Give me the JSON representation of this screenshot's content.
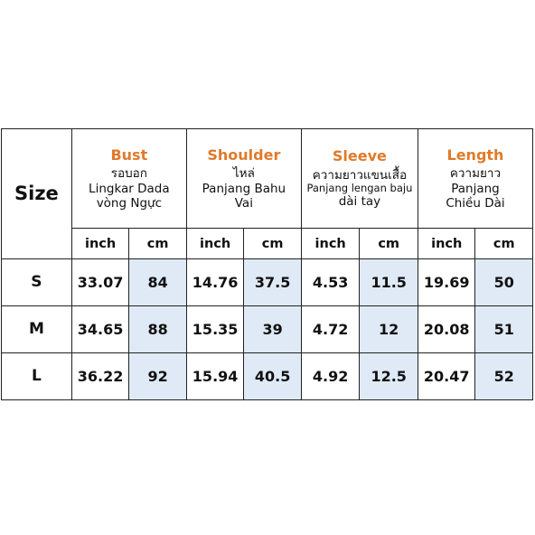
{
  "table": {
    "size_header": "Size",
    "colors": {
      "group_title": "#e07a2a",
      "cm_fill": "#dfeaf6",
      "border": "#222222"
    },
    "groups": [
      {
        "en": "Bust",
        "lines": [
          "รอบอก",
          "Lingkar Dada",
          "vòng Ngực"
        ]
      },
      {
        "en": "Shoulder",
        "lines": [
          "ไหล่",
          "Panjang Bahu",
          "Vai"
        ]
      },
      {
        "en": "Sleeve",
        "lines": [
          "ความยาวแขนเสื้อ",
          "Panjang lengan baju",
          "dài tay"
        ]
      },
      {
        "en": "Length",
        "lines": [
          "ความยาว",
          "Panjang",
          "Chiều Dài"
        ]
      }
    ],
    "units": [
      "inch",
      "cm",
      "inch",
      "cm",
      "inch",
      "cm",
      "inch",
      "cm"
    ],
    "rows": [
      {
        "size": "S",
        "values": [
          "33.07",
          "84",
          "14.76",
          "37.5",
          "4.53",
          "11.5",
          "19.69",
          "50"
        ]
      },
      {
        "size": "M",
        "values": [
          "34.65",
          "88",
          "15.35",
          "39",
          "4.72",
          "12",
          "20.08",
          "51"
        ]
      },
      {
        "size": "L",
        "values": [
          "36.22",
          "92",
          "15.94",
          "40.5",
          "4.92",
          "12.5",
          "20.47",
          "52"
        ]
      }
    ]
  }
}
